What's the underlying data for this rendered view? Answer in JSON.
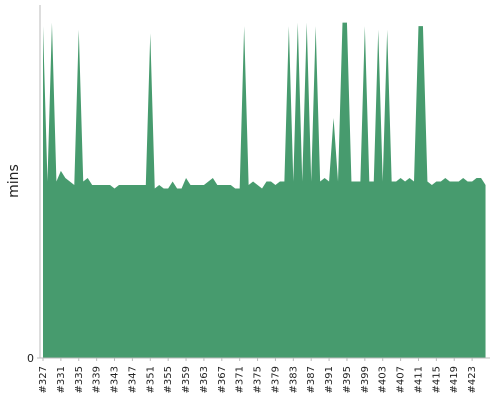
{
  "chart_data": {
    "type": "area",
    "ylabel": "mins",
    "color": "#479b6e",
    "ylim": [
      0,
      100
    ],
    "yticks": [
      0
    ],
    "categories": [
      "#327",
      null,
      null,
      null,
      "#331",
      null,
      null,
      null,
      "#335",
      null,
      null,
      null,
      "#339",
      null,
      null,
      null,
      "#343",
      null,
      null,
      null,
      "#347",
      null,
      null,
      null,
      "#351",
      null,
      null,
      null,
      "#355",
      null,
      null,
      null,
      "#359",
      null,
      null,
      null,
      "#363",
      null,
      null,
      null,
      "#367",
      null,
      null,
      null,
      "#371",
      null,
      null,
      null,
      "#375",
      null,
      null,
      null,
      "#379",
      null,
      null,
      null,
      "#383",
      null,
      null,
      null,
      "#387",
      null,
      null,
      null,
      "#391",
      null,
      null,
      null,
      "#395",
      null,
      null,
      null,
      "#399",
      null,
      null,
      null,
      "#403",
      null,
      null,
      null,
      "#407",
      null,
      null,
      null,
      "#411",
      null,
      null,
      null,
      "#415",
      null,
      null,
      null,
      "#419",
      null,
      null,
      null,
      "#423",
      null,
      null,
      null
    ],
    "values": [
      94,
      50,
      95,
      50,
      53,
      51,
      50,
      49,
      93,
      50,
      51,
      49,
      49,
      49,
      49,
      49,
      48,
      49,
      49,
      49,
      49,
      49,
      49,
      49,
      92,
      48,
      49,
      48,
      48,
      50,
      48,
      48,
      51,
      49,
      49,
      49,
      49,
      50,
      51,
      49,
      49,
      49,
      49,
      48,
      48,
      94,
      49,
      50,
      49,
      48,
      50,
      50,
      49,
      50,
      50,
      94,
      50,
      95,
      50,
      95,
      50,
      94,
      50,
      51,
      50,
      68,
      50,
      95,
      95,
      50,
      50,
      50,
      94,
      50,
      50,
      93,
      50,
      93,
      50,
      50,
      51,
      50,
      51,
      50,
      94,
      94,
      50,
      49,
      50,
      50,
      51,
      50,
      50,
      50,
      51,
      50,
      50,
      51,
      51,
      49
    ]
  }
}
